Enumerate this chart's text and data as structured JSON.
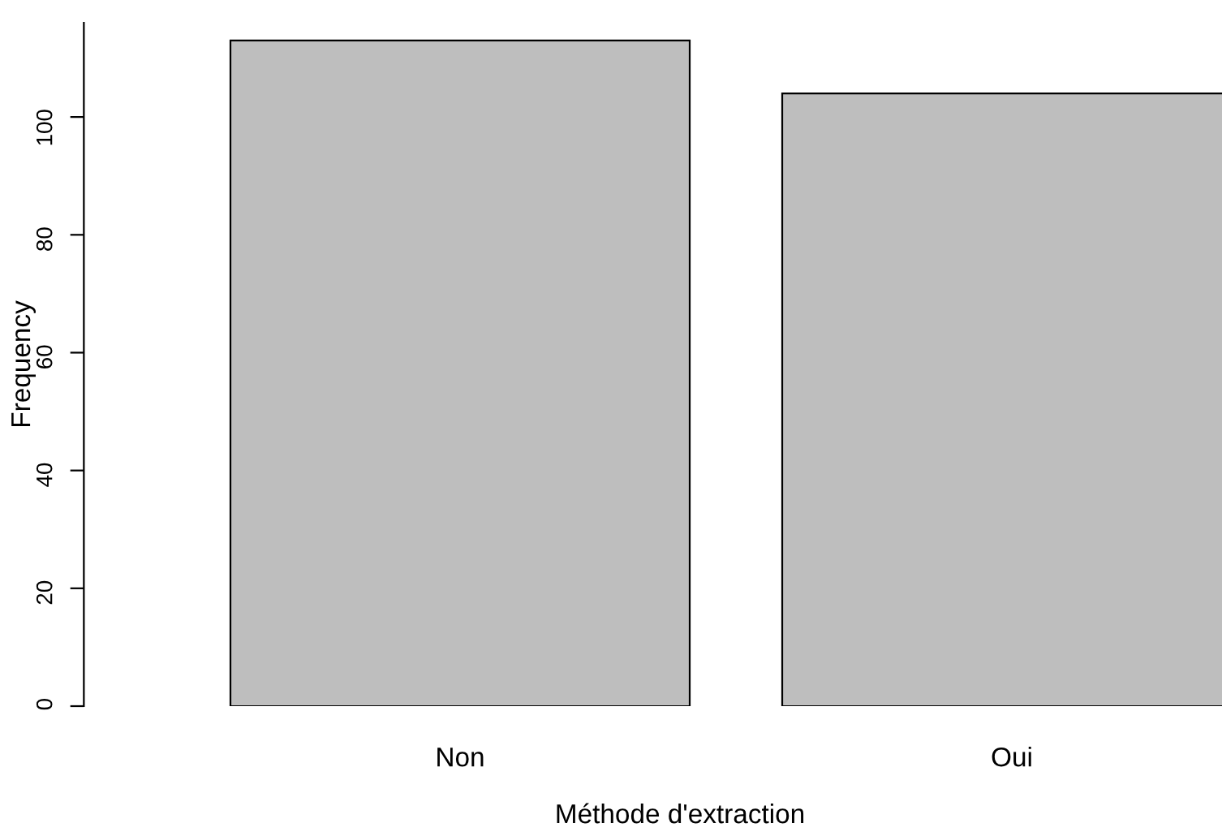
{
  "chart_data": {
    "type": "bar",
    "xlabel": "Méthode d'extraction",
    "ylabel": "Frequency",
    "categories": [
      "Non",
      "Oui"
    ],
    "values": [
      113,
      104
    ],
    "color": "#bebebe",
    "ylim": [
      0,
      116
    ],
    "yticks": [
      0,
      20,
      40,
      60,
      80,
      100
    ],
    "grid": false,
    "legend": false
  }
}
